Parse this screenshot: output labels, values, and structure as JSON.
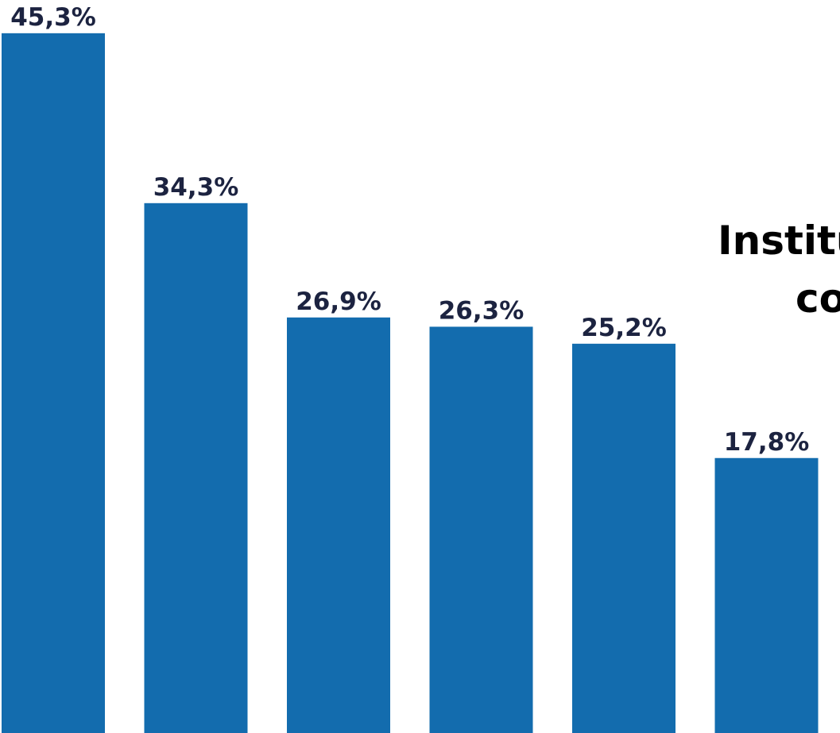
{
  "chart_data": {
    "type": "bar",
    "values": [
      45.3,
      34.3,
      26.9,
      26.3,
      25.2,
      17.8
    ],
    "value_labels": [
      "45,3%",
      "34,3%",
      "26,9%",
      "26,3%",
      "25,2%",
      "17,8%"
    ],
    "ylim": [
      0,
      46.5
    ],
    "grid": false,
    "bar_color": "#136cae",
    "label_color": "#1c2340",
    "side_title_lines": [
      "Institu",
      "co"
    ]
  }
}
